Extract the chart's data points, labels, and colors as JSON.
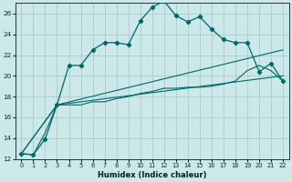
{
  "xlabel": "Humidex (Indice chaleur)",
  "bg_color": "#cce8e8",
  "grid_color": "#aacccc",
  "line_color": "#006868",
  "xlim": [
    -0.5,
    22.5
  ],
  "ylim": [
    12,
    27
  ],
  "yticks": [
    12,
    14,
    16,
    18,
    20,
    22,
    24,
    26
  ],
  "xticks": [
    0,
    1,
    2,
    3,
    4,
    5,
    6,
    7,
    8,
    9,
    10,
    11,
    12,
    13,
    14,
    15,
    16,
    17,
    18,
    19,
    20,
    21,
    22
  ],
  "main_line_x": [
    0,
    1,
    2,
    3,
    4,
    5,
    6,
    7,
    8,
    9,
    10,
    11,
    12,
    13,
    14,
    15,
    16,
    17,
    18,
    19,
    20,
    21,
    22
  ],
  "main_line_y": [
    12.5,
    12.4,
    13.9,
    17.2,
    21.0,
    21.0,
    22.5,
    23.2,
    23.2,
    23.0,
    25.3,
    26.6,
    27.2,
    25.8,
    25.2,
    25.7,
    24.5,
    23.5,
    23.2,
    23.2,
    20.4,
    21.2,
    19.5
  ],
  "line2_x": [
    0,
    1,
    2,
    3,
    4,
    5,
    6,
    7,
    8,
    9,
    10,
    11,
    12,
    13,
    14,
    15,
    16,
    17,
    18,
    19,
    20,
    21,
    22
  ],
  "line2_y": [
    12.5,
    12.4,
    14.5,
    17.2,
    17.2,
    17.2,
    17.5,
    17.5,
    17.8,
    18.0,
    18.3,
    18.5,
    18.8,
    18.8,
    18.9,
    18.9,
    19.0,
    19.2,
    19.5,
    20.5,
    21.0,
    20.5,
    19.5
  ],
  "line3_x": [
    0,
    3,
    22
  ],
  "line3_y": [
    12.5,
    17.2,
    22.5
  ],
  "line4_x": [
    0,
    3,
    22
  ],
  "line4_y": [
    12.5,
    17.2,
    20.0
  ]
}
